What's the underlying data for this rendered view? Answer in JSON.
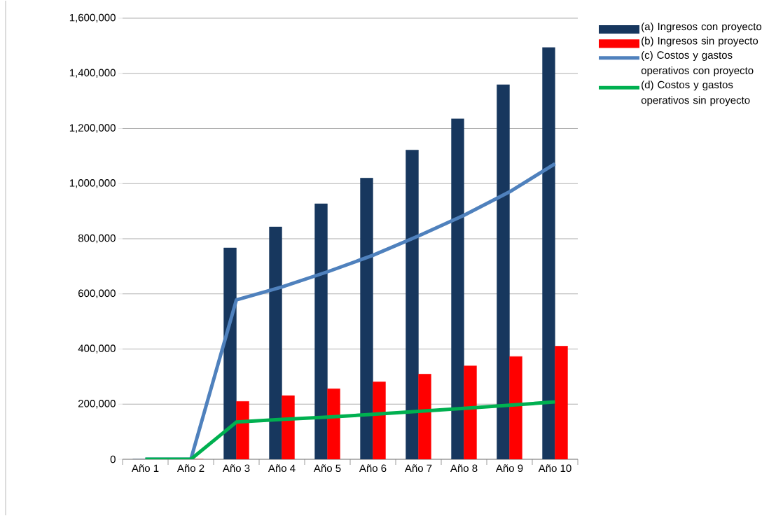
{
  "chart_data": {
    "type": "bar",
    "categories": [
      "Año 1",
      "Año 2",
      "Año 3",
      "Año 4",
      "Año 5",
      "Año 6",
      "Año 7",
      "Año 8",
      "Año 9",
      "Año 10"
    ],
    "series": [
      {
        "name": "(a) Ingresos con proyecto",
        "color": "#17375e",
        "values": [
          0,
          0,
          767000,
          843000,
          927000,
          1020000,
          1122000,
          1235000,
          1359000,
          1494000
        ]
      },
      {
        "name": "(b) Ingresos sin proyecto",
        "color": "#ff0000",
        "values": [
          0,
          0,
          210000,
          231000,
          256000,
          281000,
          309000,
          339000,
          373000,
          411000
        ]
      },
      {
        "name": "(c) Costos y gastos operativos con proyecto",
        "type": "line",
        "color": "#4f81bd",
        "values": [
          0,
          0,
          578000,
          625000,
          680000,
          740000,
          810000,
          885000,
          970000,
          1072000
        ]
      },
      {
        "name": "(d) Costos y gastos operativos sin proyecto",
        "type": "line",
        "color": "#00b050",
        "values": [
          0,
          0,
          135000,
          145000,
          153000,
          163000,
          174000,
          185000,
          196000,
          208000
        ]
      }
    ],
    "ylim": [
      0,
      1600000
    ],
    "yticks": [
      {
        "value": 0,
        "label": "0"
      },
      {
        "value": 200000,
        "label": "200,000"
      },
      {
        "value": 400000,
        "label": "400,000"
      },
      {
        "value": 600000,
        "label": "600,000"
      },
      {
        "value": 800000,
        "label": "800,000"
      },
      {
        "value": 1000000,
        "label": "1,000,000"
      },
      {
        "value": 1200000,
        "label": "1,200,000"
      },
      {
        "value": 1400000,
        "label": "1,400,000"
      },
      {
        "value": 1600000,
        "label": "1,600,000"
      }
    ],
    "grid": "y",
    "legend": "right"
  }
}
